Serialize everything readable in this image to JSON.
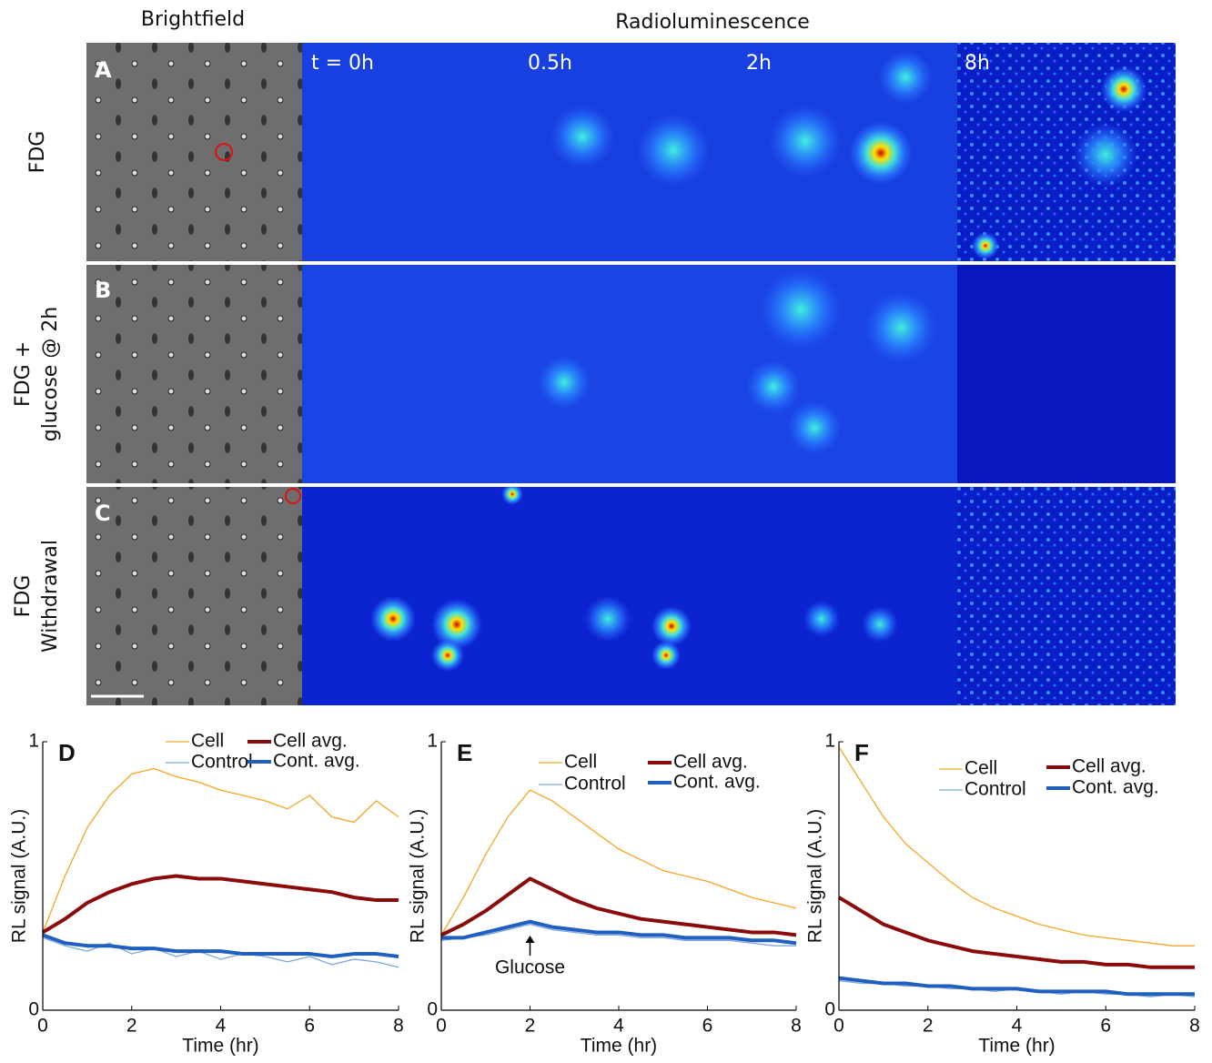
{
  "figure": {
    "brightfield": "Brightfield",
    "radio": "Radioluminescence",
    "times": [
      "t = 0h",
      "0.5h",
      "2h",
      "8h"
    ],
    "rows": [
      {
        "letter": "A",
        "label": [
          "FDG"
        ]
      },
      {
        "letter": "B",
        "label": [
          "FDG +",
          "glucose @ 2h"
        ]
      },
      {
        "letter": "C",
        "label": [
          "FDG",
          "Withdrawal"
        ]
      }
    ]
  },
  "chart_data": [
    {
      "type": "line",
      "panel": "D",
      "xlabel": "Time (hr)",
      "ylabel": "RL signal (A.U.)",
      "x": [
        0,
        0.5,
        1,
        1.5,
        2,
        2.5,
        3,
        3.5,
        4,
        4.5,
        5,
        5.5,
        6,
        6.5,
        7,
        7.5,
        8
      ],
      "xlim": [
        0,
        8
      ],
      "xticks": [
        0,
        2,
        4,
        6,
        8
      ],
      "ylim": [
        0,
        1
      ],
      "yticks": [
        0,
        1
      ],
      "series": [
        {
          "name": "Cell",
          "color": "#f5a623",
          "width": 1.3,
          "values": [
            0.29,
            0.5,
            0.68,
            0.8,
            0.88,
            0.9,
            0.87,
            0.85,
            0.82,
            0.8,
            0.78,
            0.75,
            0.8,
            0.72,
            0.7,
            0.78,
            0.72
          ]
        },
        {
          "name": "Control",
          "color": "#7fa6e0",
          "width": 1.3,
          "values": [
            0.27,
            0.24,
            0.22,
            0.25,
            0.21,
            0.23,
            0.2,
            0.22,
            0.19,
            0.21,
            0.2,
            0.18,
            0.2,
            0.17,
            0.19,
            0.18,
            0.16
          ]
        },
        {
          "name": "Cell avg.",
          "color": "#8b0a0a",
          "width": 4,
          "values": [
            0.29,
            0.34,
            0.4,
            0.44,
            0.47,
            0.49,
            0.5,
            0.49,
            0.49,
            0.48,
            0.47,
            0.46,
            0.45,
            0.44,
            0.42,
            0.41,
            0.41
          ]
        },
        {
          "name": "Cont. avg.",
          "color": "#1f5fbf",
          "width": 4,
          "values": [
            0.28,
            0.25,
            0.24,
            0.24,
            0.23,
            0.23,
            0.22,
            0.22,
            0.22,
            0.21,
            0.21,
            0.21,
            0.21,
            0.2,
            0.21,
            0.21,
            0.2
          ]
        }
      ]
    },
    {
      "type": "line",
      "panel": "E",
      "xlabel": "Time (hr)",
      "ylabel": "RL signal (A.U.)",
      "x": [
        0,
        0.5,
        1,
        1.5,
        2,
        2.5,
        3,
        3.5,
        4,
        4.5,
        5,
        5.5,
        6,
        6.5,
        7,
        7.5,
        8
      ],
      "xlim": [
        0,
        8
      ],
      "xticks": [
        0,
        2,
        4,
        6,
        8
      ],
      "ylim": [
        0,
        1
      ],
      "yticks": [
        0,
        1
      ],
      "annotations": [
        {
          "text": "Glucose",
          "x": 2
        }
      ],
      "series": [
        {
          "name": "Cell",
          "color": "#f5a623",
          "width": 1.3,
          "values": [
            0.28,
            0.42,
            0.58,
            0.72,
            0.82,
            0.78,
            0.72,
            0.66,
            0.6,
            0.56,
            0.52,
            0.5,
            0.48,
            0.45,
            0.42,
            0.4,
            0.38
          ]
        },
        {
          "name": "Control",
          "color": "#7fa6e0",
          "width": 1.3,
          "values": [
            0.26,
            0.27,
            0.28,
            0.3,
            0.32,
            0.3,
            0.29,
            0.28,
            0.28,
            0.27,
            0.27,
            0.26,
            0.26,
            0.26,
            0.25,
            0.24,
            0.24
          ]
        },
        {
          "name": "Cell avg.",
          "color": "#8b0a0a",
          "width": 4,
          "values": [
            0.28,
            0.32,
            0.37,
            0.43,
            0.49,
            0.45,
            0.41,
            0.38,
            0.36,
            0.34,
            0.33,
            0.32,
            0.31,
            0.3,
            0.29,
            0.29,
            0.28
          ]
        },
        {
          "name": "Cont. avg.",
          "color": "#1f5fbf",
          "width": 4,
          "values": [
            0.27,
            0.27,
            0.29,
            0.31,
            0.33,
            0.31,
            0.3,
            0.29,
            0.29,
            0.28,
            0.28,
            0.27,
            0.27,
            0.27,
            0.26,
            0.26,
            0.25
          ]
        }
      ]
    },
    {
      "type": "line",
      "panel": "F",
      "xlabel": "Time (hr)",
      "ylabel": "RL signal (A.U.)",
      "x": [
        0,
        0.5,
        1,
        1.5,
        2,
        2.5,
        3,
        3.5,
        4,
        4.5,
        5,
        5.5,
        6,
        6.5,
        7,
        7.5,
        8
      ],
      "xlim": [
        0,
        8
      ],
      "xticks": [
        0,
        2,
        4,
        6,
        8
      ],
      "ylim": [
        0,
        1
      ],
      "yticks": [
        0,
        1
      ],
      "series": [
        {
          "name": "Cell",
          "color": "#f5a623",
          "width": 1.3,
          "values": [
            0.98,
            0.85,
            0.72,
            0.62,
            0.55,
            0.48,
            0.42,
            0.38,
            0.35,
            0.32,
            0.3,
            0.28,
            0.27,
            0.26,
            0.25,
            0.24,
            0.24
          ]
        },
        {
          "name": "Control",
          "color": "#7fa6e0",
          "width": 1.3,
          "values": [
            0.11,
            0.1,
            0.1,
            0.09,
            0.09,
            0.08,
            0.08,
            0.07,
            0.08,
            0.07,
            0.06,
            0.07,
            0.06,
            0.06,
            0.05,
            0.06,
            0.05
          ]
        },
        {
          "name": "Cell avg.",
          "color": "#8b0a0a",
          "width": 4,
          "values": [
            0.42,
            0.37,
            0.32,
            0.29,
            0.26,
            0.24,
            0.22,
            0.21,
            0.2,
            0.19,
            0.18,
            0.18,
            0.17,
            0.17,
            0.16,
            0.16,
            0.16
          ]
        },
        {
          "name": "Cont. avg.",
          "color": "#1f5fbf",
          "width": 4,
          "values": [
            0.12,
            0.11,
            0.1,
            0.1,
            0.09,
            0.09,
            0.08,
            0.08,
            0.08,
            0.07,
            0.07,
            0.07,
            0.07,
            0.06,
            0.06,
            0.06,
            0.06
          ]
        }
      ]
    }
  ]
}
